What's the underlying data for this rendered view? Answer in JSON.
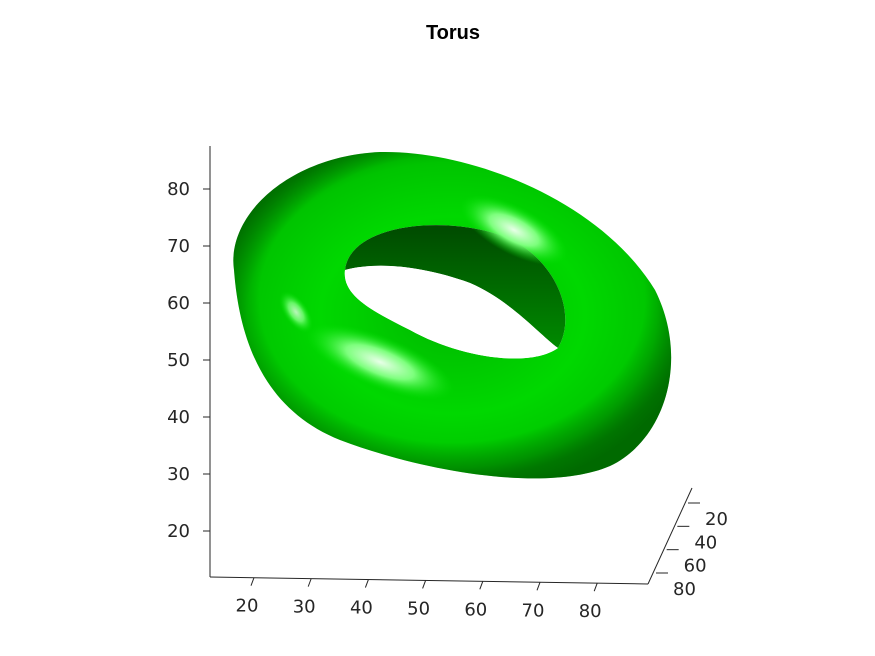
{
  "chart_data": {
    "type": "surface3d",
    "title": "Torus",
    "surface": "torus",
    "color": "#00e600",
    "shading": "lit",
    "grid": false,
    "x_ticks": [
      "20",
      "30",
      "40",
      "50",
      "60",
      "70",
      "80"
    ],
    "y_ticks": [
      "20",
      "40",
      "60",
      "80"
    ],
    "z_ticks": [
      "20",
      "30",
      "40",
      "50",
      "60",
      "70",
      "80"
    ],
    "xlim": [
      13,
      88
    ],
    "ylim": [
      13,
      88
    ],
    "zlim": [
      12,
      88
    ]
  }
}
